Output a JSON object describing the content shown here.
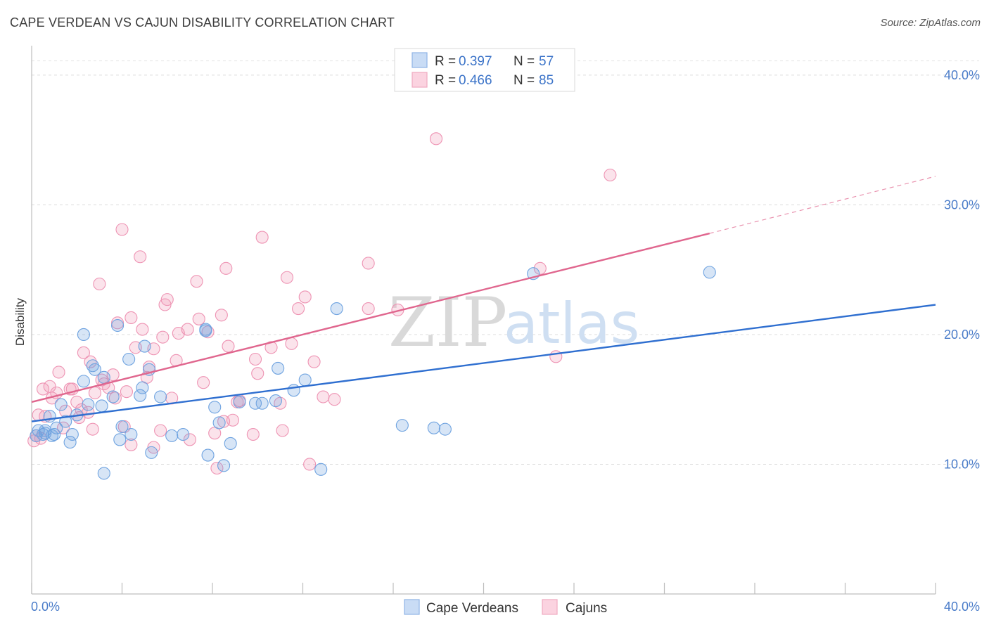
{
  "header": {
    "title": "CAPE VERDEAN VS CAJUN DISABILITY CORRELATION CHART",
    "source": "Source: ZipAtlas.com"
  },
  "watermark": {
    "zip": "ZIP",
    "atlas": "atlas"
  },
  "legend": {
    "r_label": "R =",
    "n_label": "N =",
    "rows": [
      {
        "series": "Cape Verdeans",
        "r": "0.397",
        "n": "57",
        "color": "#6fa3e0"
      },
      {
        "series": "Cajuns",
        "r": "0.466",
        "n": "85",
        "color": "#f29bb8"
      }
    ]
  },
  "bottom_legend": [
    "Cape Verdeans",
    "Cajuns"
  ],
  "chart_data": {
    "type": "scatter",
    "title": "CAPE VERDEAN VS CAJUN DISABILITY CORRELATION CHART",
    "xlabel": "",
    "ylabel": "Disability",
    "xlim": [
      0,
      40
    ],
    "ylim": [
      0,
      42
    ],
    "x_tick_labels": [
      "0.0%",
      "40.0%"
    ],
    "y_ticks": [
      10,
      20,
      30,
      40
    ],
    "y_tick_labels": [
      "10.0%",
      "20.0%",
      "30.0%",
      "40.0%"
    ],
    "grid": true,
    "series": [
      {
        "name": "Cape Verdeans",
        "color": "#6fa3e0",
        "line_color": "#2f6fd0",
        "trend": {
          "x0": 0,
          "y0": 13.3,
          "x1": 40,
          "y1": 22.3
        },
        "points": [
          [
            0.2,
            12.2
          ],
          [
            0.3,
            12.6
          ],
          [
            0.5,
            12.3
          ],
          [
            0.6,
            12.4
          ],
          [
            0.8,
            13.7
          ],
          [
            0.9,
            12.2
          ],
          [
            1.1,
            12.8
          ],
          [
            1.3,
            14.6
          ],
          [
            1.5,
            13.3
          ],
          [
            1.7,
            11.7
          ],
          [
            1.8,
            12.3
          ],
          [
            2.0,
            13.8
          ],
          [
            2.3,
            20.0
          ],
          [
            2.3,
            16.4
          ],
          [
            2.5,
            14.6
          ],
          [
            2.7,
            17.6
          ],
          [
            2.8,
            17.3
          ],
          [
            3.1,
            14.5
          ],
          [
            3.2,
            9.3
          ],
          [
            3.2,
            16.7
          ],
          [
            3.6,
            15.2
          ],
          [
            3.8,
            20.7
          ],
          [
            3.9,
            11.9
          ],
          [
            4.0,
            12.9
          ],
          [
            4.3,
            18.1
          ],
          [
            4.4,
            12.3
          ],
          [
            4.8,
            15.3
          ],
          [
            4.9,
            15.9
          ],
          [
            5.0,
            19.1
          ],
          [
            5.2,
            17.3
          ],
          [
            5.3,
            10.9
          ],
          [
            5.7,
            15.2
          ],
          [
            6.2,
            12.2
          ],
          [
            6.7,
            12.3
          ],
          [
            7.7,
            20.3
          ],
          [
            7.7,
            20.4
          ],
          [
            7.8,
            10.7
          ],
          [
            8.1,
            14.4
          ],
          [
            8.3,
            13.2
          ],
          [
            8.5,
            9.9
          ],
          [
            8.8,
            11.6
          ],
          [
            9.2,
            14.8
          ],
          [
            9.9,
            14.7
          ],
          [
            10.2,
            14.7
          ],
          [
            10.8,
            14.9
          ],
          [
            10.9,
            17.4
          ],
          [
            11.6,
            15.7
          ],
          [
            12.1,
            16.5
          ],
          [
            12.8,
            9.6
          ],
          [
            13.5,
            22.0
          ],
          [
            16.4,
            13.0
          ],
          [
            17.8,
            12.8
          ],
          [
            18.3,
            12.7
          ],
          [
            22.2,
            24.7
          ],
          [
            30.0,
            24.8
          ],
          [
            0.6,
            12.6
          ],
          [
            1.0,
            12.3
          ]
        ]
      },
      {
        "name": "Cajuns",
        "color": "#f29bb8",
        "line_color": "#e0668e",
        "trend": {
          "x0": 0,
          "y0": 14.8,
          "x1": 30,
          "y1": 27.8
        },
        "trend_dashed": {
          "x0": 30,
          "y0": 27.8,
          "x1": 40,
          "y1": 32.2
        },
        "points": [
          [
            0.1,
            11.8
          ],
          [
            0.2,
            12.2
          ],
          [
            0.3,
            13.8
          ],
          [
            0.5,
            15.8
          ],
          [
            0.6,
            13.7
          ],
          [
            0.8,
            16.0
          ],
          [
            0.9,
            15.1
          ],
          [
            1.1,
            15.5
          ],
          [
            1.2,
            17.1
          ],
          [
            1.4,
            12.8
          ],
          [
            1.5,
            14.1
          ],
          [
            1.7,
            15.8
          ],
          [
            1.8,
            15.8
          ],
          [
            2.0,
            14.8
          ],
          [
            2.1,
            13.6
          ],
          [
            2.2,
            14.2
          ],
          [
            2.3,
            18.6
          ],
          [
            2.5,
            14.0
          ],
          [
            2.6,
            17.9
          ],
          [
            2.7,
            12.7
          ],
          [
            2.8,
            15.5
          ],
          [
            3.0,
            23.9
          ],
          [
            3.1,
            16.5
          ],
          [
            3.2,
            16.2
          ],
          [
            3.4,
            15.9
          ],
          [
            3.6,
            16.9
          ],
          [
            3.7,
            15.1
          ],
          [
            3.8,
            20.9
          ],
          [
            4.0,
            28.1
          ],
          [
            4.1,
            12.9
          ],
          [
            4.2,
            15.6
          ],
          [
            4.4,
            21.3
          ],
          [
            4.4,
            11.5
          ],
          [
            4.6,
            19.0
          ],
          [
            4.8,
            26.0
          ],
          [
            4.9,
            20.4
          ],
          [
            5.1,
            16.7
          ],
          [
            5.2,
            17.5
          ],
          [
            5.4,
            18.9
          ],
          [
            5.4,
            11.3
          ],
          [
            5.7,
            12.6
          ],
          [
            5.8,
            19.8
          ],
          [
            5.9,
            22.3
          ],
          [
            6.0,
            22.7
          ],
          [
            6.2,
            15.1
          ],
          [
            6.4,
            18.0
          ],
          [
            6.5,
            20.1
          ],
          [
            6.9,
            20.4
          ],
          [
            7.0,
            11.9
          ],
          [
            7.3,
            24.1
          ],
          [
            7.4,
            21.2
          ],
          [
            7.6,
            16.3
          ],
          [
            7.8,
            20.2
          ],
          [
            8.1,
            12.4
          ],
          [
            8.2,
            9.7
          ],
          [
            8.4,
            21.5
          ],
          [
            8.5,
            13.3
          ],
          [
            8.6,
            25.1
          ],
          [
            8.7,
            19.1
          ],
          [
            8.9,
            13.4
          ],
          [
            9.1,
            14.8
          ],
          [
            9.2,
            14.9
          ],
          [
            9.8,
            12.3
          ],
          [
            9.9,
            18.1
          ],
          [
            10.0,
            17.0
          ],
          [
            10.2,
            27.5
          ],
          [
            10.6,
            19.0
          ],
          [
            11.0,
            14.7
          ],
          [
            11.1,
            12.6
          ],
          [
            11.3,
            24.4
          ],
          [
            11.5,
            19.3
          ],
          [
            11.8,
            22.0
          ],
          [
            12.1,
            22.9
          ],
          [
            12.3,
            10.0
          ],
          [
            12.5,
            17.9
          ],
          [
            12.9,
            15.2
          ],
          [
            13.4,
            15.0
          ],
          [
            14.9,
            25.5
          ],
          [
            14.9,
            22.0
          ],
          [
            17.9,
            35.1
          ],
          [
            22.5,
            25.1
          ],
          [
            23.2,
            18.3
          ],
          [
            25.6,
            32.3
          ],
          [
            16.2,
            21.9
          ],
          [
            0.4,
            12.0
          ]
        ]
      }
    ]
  }
}
